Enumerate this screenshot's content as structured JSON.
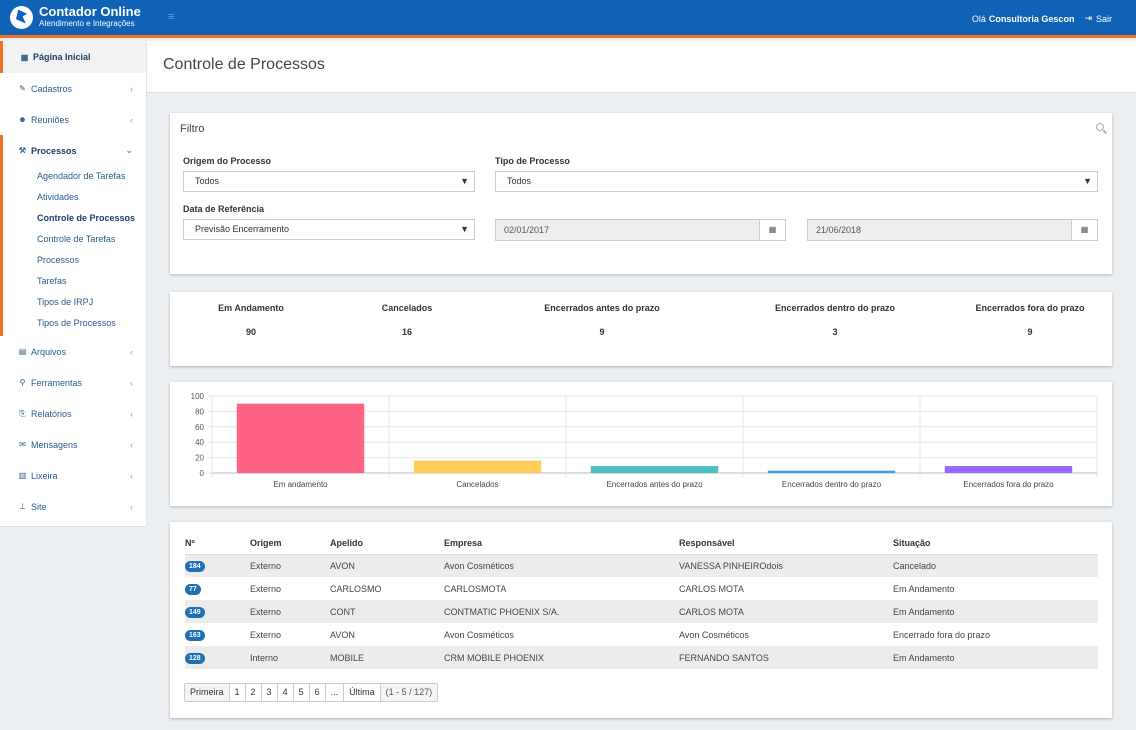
{
  "brand": {
    "title": "Contador Online",
    "subtitle": "Atendimento e Integrações"
  },
  "topbar": {
    "greeting": "Olá",
    "user": "Consultoria Gescon",
    "logout": "Sair"
  },
  "sidebar": {
    "home": "Página Inicial",
    "items": [
      {
        "label": "Cadastros",
        "icon": "edit-icon"
      },
      {
        "label": "Reuniões",
        "icon": "users-icon"
      },
      {
        "label": "Processos",
        "icon": "gavel-icon",
        "expanded": true
      },
      {
        "label": "Arquivos",
        "icon": "file-icon"
      },
      {
        "label": "Ferramentas",
        "icon": "wrench-icon"
      },
      {
        "label": "Relatórios",
        "icon": "report-icon"
      },
      {
        "label": "Mensagens",
        "icon": "envelope-icon"
      },
      {
        "label": "Lixeira",
        "icon": "trash-icon"
      },
      {
        "label": "Site",
        "icon": "sitemap-icon"
      }
    ],
    "processos_sub": [
      "Agendador de Tarefas",
      "Atividades",
      "Controle de Processos",
      "Controle de Tarefas",
      "Processos",
      "Tarefas",
      "Tipos de IRPJ",
      "Tipos de Processos"
    ]
  },
  "page": {
    "title": "Controle de Processos"
  },
  "filter": {
    "title": "Filtro",
    "origem_label": "Origem do Processo",
    "origem_value": "Todos",
    "tipo_label": "Tipo de Processo",
    "tipo_value": "Todos",
    "data_label": "Data de Referência",
    "data_value": "Previsão Encerramento",
    "date_from": "02/01/2017",
    "date_to": "21/06/2018"
  },
  "stats": [
    {
      "label": "Em Andamento",
      "value": "90"
    },
    {
      "label": "Cancelados",
      "value": "16"
    },
    {
      "label": "Encerrados antes do prazo",
      "value": "9"
    },
    {
      "label": "Encerrados dentro do prazo",
      "value": "3"
    },
    {
      "label": "Encerrados fora do prazo",
      "value": "9"
    }
  ],
  "chart_data": {
    "type": "bar",
    "categories": [
      "Em andamento",
      "Cancelados",
      "Encerrados antes do prazo",
      "Encerrados dentro do prazo",
      "Encerrados fora do prazo"
    ],
    "values": [
      90,
      16,
      9,
      3,
      9
    ],
    "colors": [
      "#ff6384",
      "#ffce56",
      "#4bc0c0",
      "#36a2eb",
      "#9966ff"
    ],
    "yticks": [
      0,
      20,
      40,
      60,
      80,
      100
    ],
    "ylim": [
      0,
      100
    ],
    "grid": true
  },
  "table": {
    "headers": [
      "Nº",
      "Origem",
      "Apelido",
      "Empresa",
      "Responsável",
      "Situação"
    ],
    "rows": [
      {
        "num": "184",
        "origem": "Externo",
        "apelido": "AVON",
        "empresa": "Avon Cosméticos",
        "responsavel": "VANESSA PINHEIROdois",
        "situacao": "Cancelado"
      },
      {
        "num": "77",
        "origem": "Externo",
        "apelido": "CARLOSMO",
        "empresa": "CARLOSMOTA",
        "responsavel": "CARLOS MOTA",
        "situacao": "Em Andamento"
      },
      {
        "num": "149",
        "origem": "Externo",
        "apelido": "CONT",
        "empresa": "CONTMATIC PHOENIX S/A.",
        "responsavel": "CARLOS MOTA",
        "situacao": "Em Andamento"
      },
      {
        "num": "163",
        "origem": "Externo",
        "apelido": "AVON",
        "empresa": "Avon Cosméticos",
        "responsavel": "Avon Cosméticos",
        "situacao": "Encerrado fora do prazo"
      },
      {
        "num": "128",
        "origem": "Interno",
        "apelido": "MOBILE",
        "empresa": "CRM MOBILE PHOENIX",
        "responsavel": "FERNANDO SANTOS",
        "situacao": "Em Andamento"
      }
    ]
  },
  "pager": {
    "first": "Primeira",
    "pages": [
      "1",
      "2",
      "3",
      "4",
      "5",
      "6",
      "..."
    ],
    "last": "Última",
    "info": "(1 - 5 / 127)"
  },
  "colors": {
    "topbar": "#0f62b5",
    "accent": "#f37021",
    "badge": "#1f6fb5"
  }
}
